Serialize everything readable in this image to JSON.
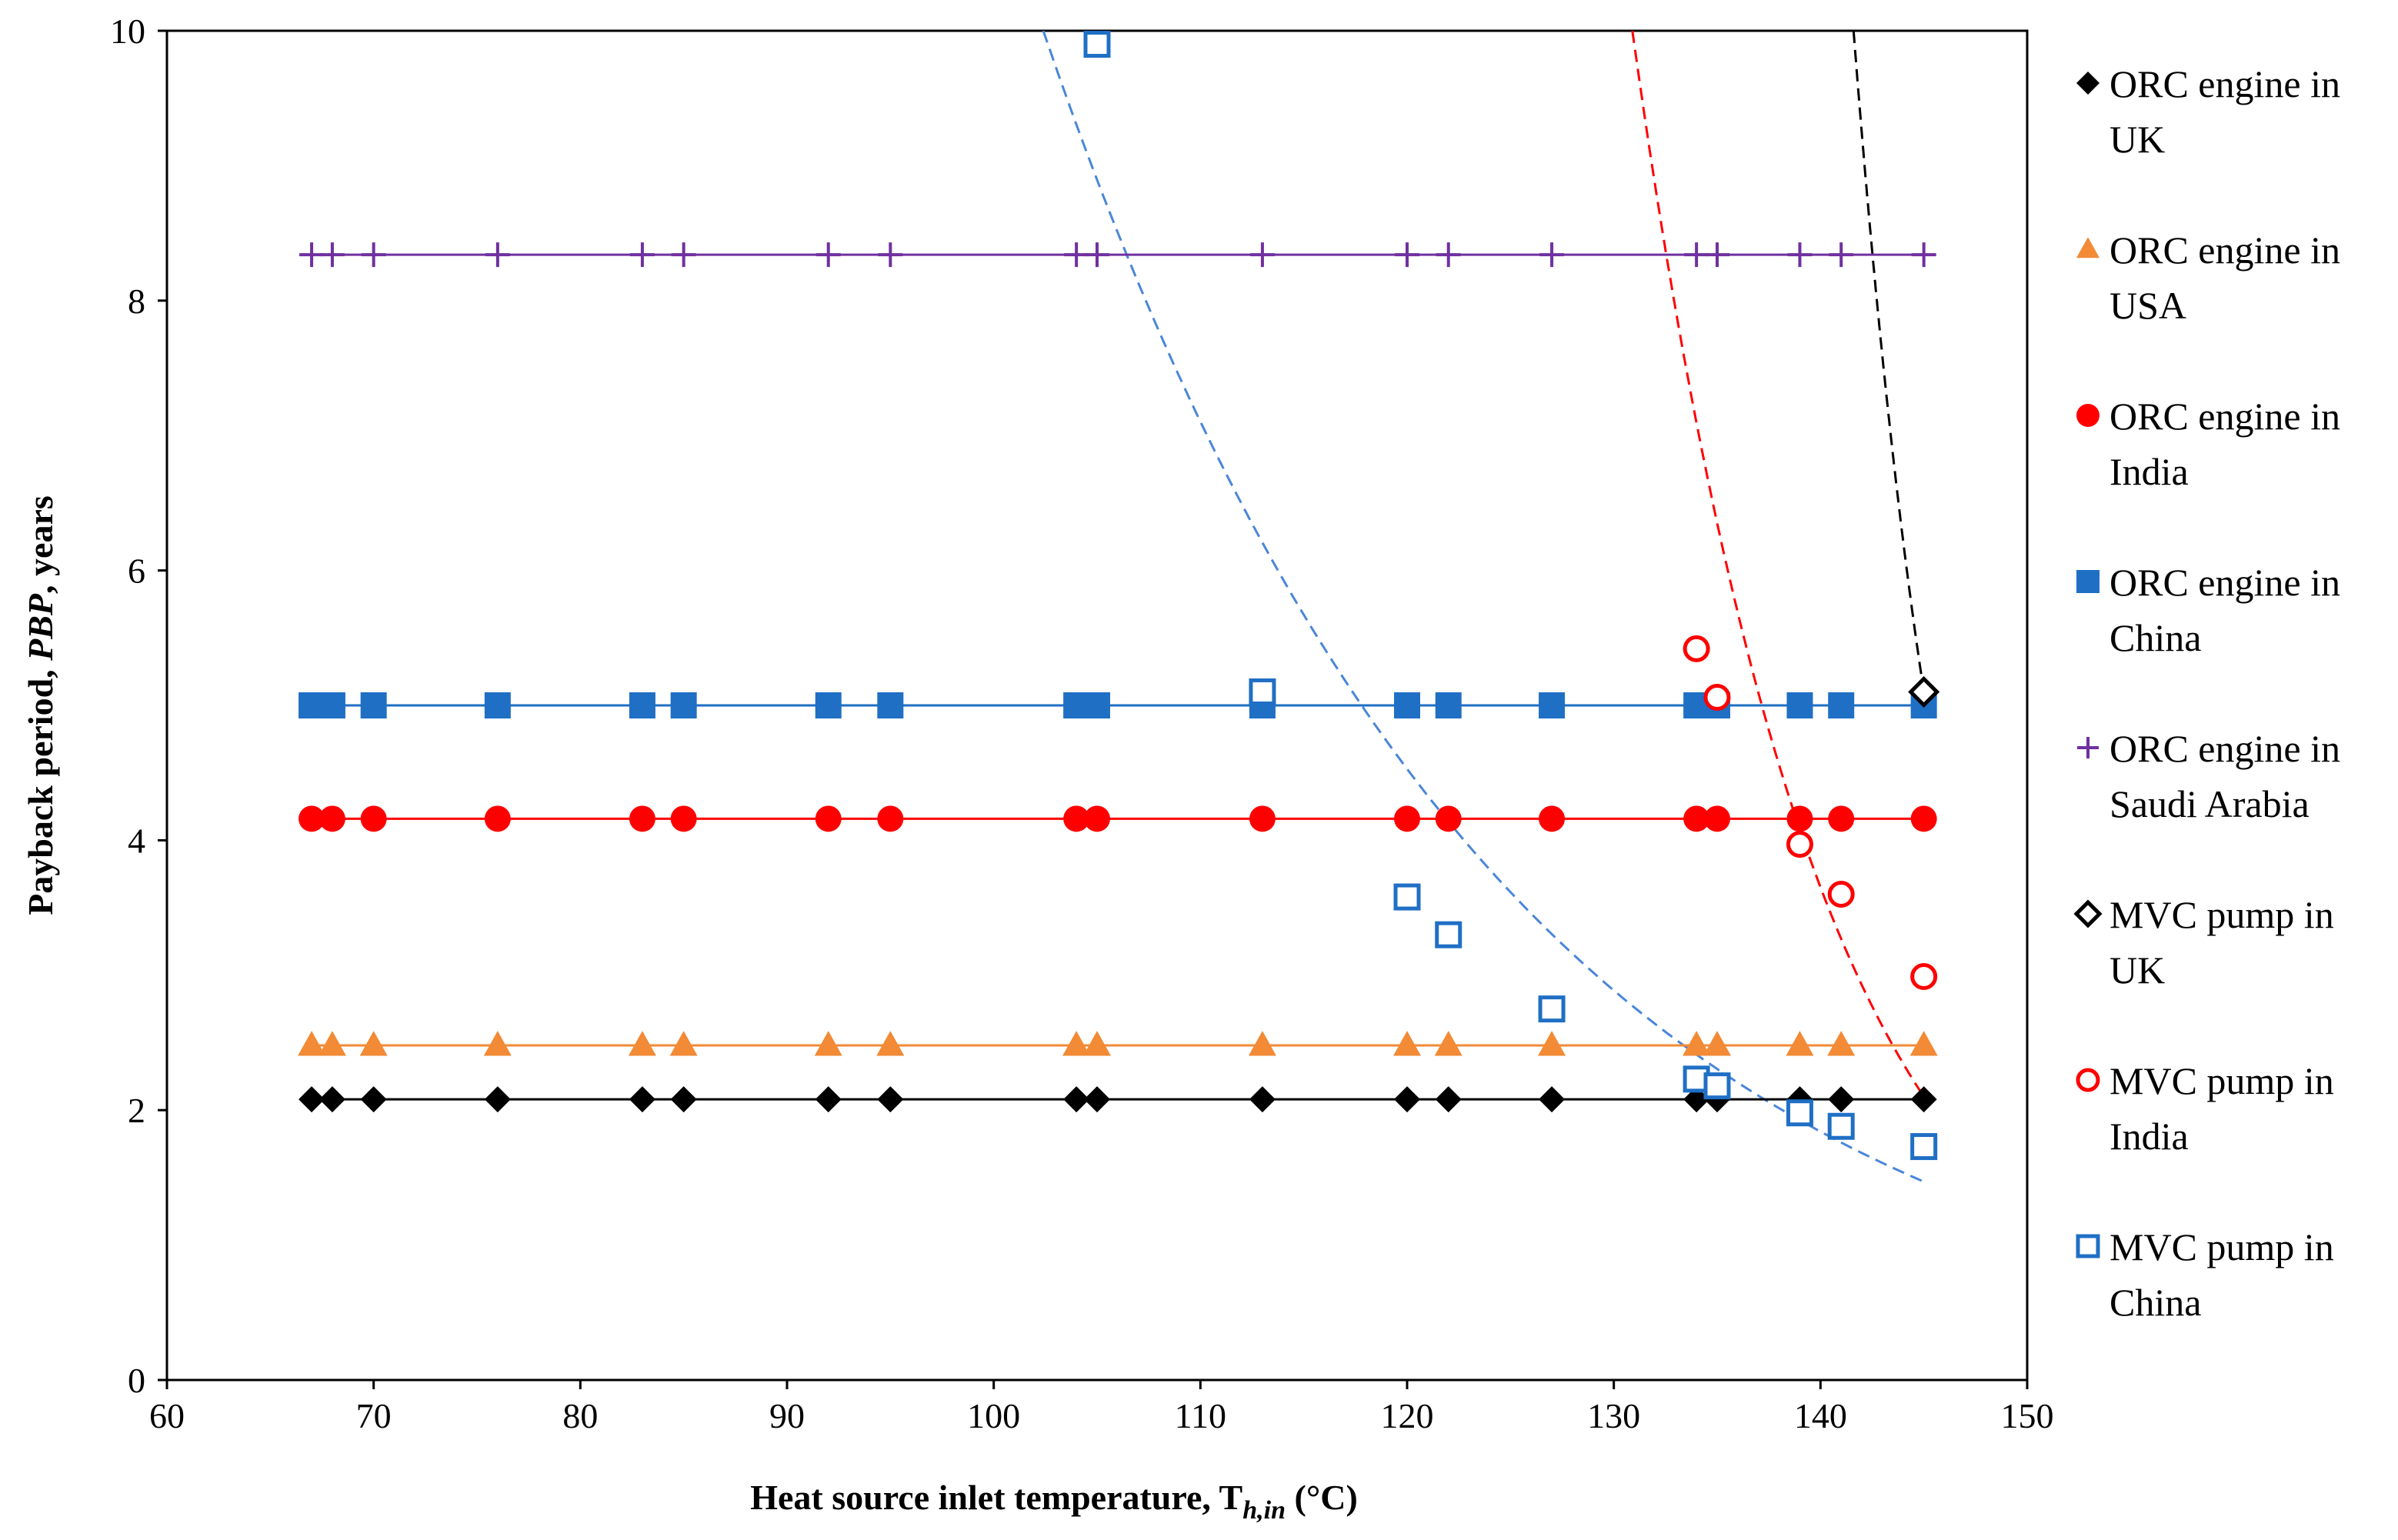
{
  "chart_data": {
    "type": "scatter",
    "title": "",
    "xlabel": "Heat source inlet temperature, T",
    "xlabel_sub": "h,in",
    "xlabel_tail": " (°C)",
    "ylabel": "Payback period, ",
    "ylabel_italic": "PBP",
    "ylabel_tail": ", years",
    "xlim": [
      60,
      150
    ],
    "ylim": [
      0,
      10
    ],
    "xticks": [
      60,
      70,
      80,
      90,
      100,
      110,
      120,
      130,
      140,
      150
    ],
    "yticks": [
      0,
      2,
      4,
      6,
      8,
      10
    ],
    "x": [
      67,
      68,
      70,
      76,
      83,
      85,
      92,
      95,
      104,
      105,
      113,
      120,
      122,
      127,
      134,
      135,
      139,
      141,
      145
    ],
    "series": [
      {
        "name": "ORC engine in UK",
        "legend_lines": [
          "ORC engine in",
          "UK"
        ],
        "marker": "diamond",
        "filled": true,
        "color": "#000000",
        "value": 2.08,
        "line": "solid"
      },
      {
        "name": "ORC engine in USA",
        "legend_lines": [
          "ORC engine in",
          "USA"
        ],
        "marker": "triangle",
        "filled": true,
        "color": "#F28A36",
        "value": 2.48,
        "line": "solid"
      },
      {
        "name": "ORC engine in India",
        "legend_lines": [
          "ORC engine in",
          "India"
        ],
        "marker": "circle",
        "filled": true,
        "color": "#FF0000",
        "value": 4.16,
        "line": "solid"
      },
      {
        "name": "ORC engine in China",
        "legend_lines": [
          "ORC engine in",
          "China"
        ],
        "marker": "square",
        "filled": true,
        "color": "#1F6FC5",
        "value": 5.0,
        "line": "solid"
      },
      {
        "name": "ORC engine in Saudi Arabia",
        "legend_lines": [
          "ORC engine in",
          "Saudi Arabia"
        ],
        "marker": "plus",
        "filled": true,
        "color": "#7030A0",
        "value": 8.34,
        "line": "solid"
      },
      {
        "name": "MVC pump in UK",
        "legend_lines": [
          "MVC pump in",
          "UK"
        ],
        "marker": "diamond",
        "filled": false,
        "color": "#000000",
        "points": [
          [
            145,
            5.1
          ]
        ],
        "trend": {
          "type": "exponential",
          "color": "#000000",
          "from": [
            141.6,
            10.0
          ],
          "to": [
            145,
            5.1
          ]
        }
      },
      {
        "name": "MVC pump in India",
        "legend_lines": [
          "MVC pump in",
          "India"
        ],
        "marker": "circle",
        "filled": false,
        "color": "#FF0000",
        "points": [
          [
            134,
            5.42
          ],
          [
            135,
            5.06
          ],
          [
            139,
            3.97
          ],
          [
            141,
            3.6
          ],
          [
            145,
            2.99
          ]
        ],
        "trend": {
          "type": "exponential",
          "color": "#FF0000",
          "from": [
            130.9,
            10.0
          ],
          "to": [
            145,
            2.1
          ]
        }
      },
      {
        "name": "MVC pump in China",
        "legend_lines": [
          "MVC pump in",
          "China"
        ],
        "marker": "square",
        "filled": false,
        "color": "#1F6FC5",
        "points": [
          [
            105,
            9.9
          ],
          [
            113,
            5.1
          ],
          [
            120,
            3.58
          ],
          [
            122,
            3.3
          ],
          [
            127,
            2.75
          ],
          [
            134,
            2.23
          ],
          [
            135,
            2.18
          ],
          [
            139,
            1.98
          ],
          [
            141,
            1.88
          ],
          [
            145,
            1.73
          ]
        ],
        "trend": {
          "type": "exponential",
          "color": "#4A86D8",
          "from": [
            102.4,
            10.0
          ],
          "to": [
            145,
            1.47
          ]
        }
      }
    ],
    "legend_position": "right",
    "grid": false
  }
}
